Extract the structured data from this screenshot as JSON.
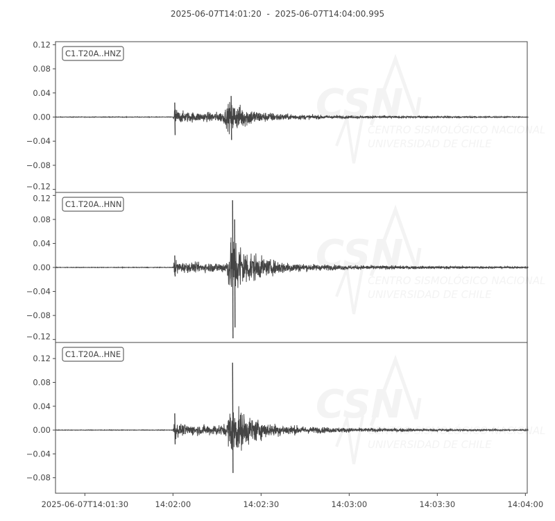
{
  "title": "2025-06-07T14:01:20  -  2025-06-07T14:04:00.995",
  "watermark": {
    "logo": "CSN",
    "line1": "CENTRO SISMOLÓGICO NACIONAL",
    "line2": "UNIVERSIDAD DE CHILE"
  },
  "colors": {
    "trace": "#444444",
    "axes": "#444444",
    "watermark": "#f3f3f3"
  },
  "chart_data": [
    {
      "type": "line",
      "series": [
        {
          "name": "C1.T20A..HNZ"
        }
      ],
      "x_range": [
        "14:01:20",
        "14:04:00.995"
      ],
      "ylim": [
        -0.125,
        0.125
      ],
      "yticks": [
        "0.12",
        "0.08",
        "0.04",
        "0.00",
        "−0.04",
        "−0.08",
        "−0.12"
      ],
      "ytick_values": [
        0.12,
        0.08,
        0.04,
        0,
        -0.04,
        -0.08,
        -0.12
      ],
      "envelope": [
        [
          "14:01:20",
          0.0006
        ],
        [
          "14:02:00",
          0.0006
        ],
        [
          "14:02:00.5",
          0.024
        ],
        [
          "14:02:02",
          0.013
        ],
        [
          "14:02:10",
          0.01
        ],
        [
          "14:02:17",
          0.012
        ],
        [
          "14:02:19.5",
          0.036
        ],
        [
          "14:02:22",
          0.028
        ],
        [
          "14:02:30",
          0.012
        ],
        [
          "14:02:40",
          0.006
        ],
        [
          "14:03:00",
          0.003
        ],
        [
          "14:03:30",
          0.0018
        ],
        [
          "14:03:55",
          0.0012
        ],
        [
          "14:04:00.995",
          0.0006
        ]
      ],
      "peaks": [
        [
          "14:02:00.6",
          0.024,
          -0.03
        ],
        [
          "14:02:19.8",
          0.035,
          -0.038
        ]
      ]
    },
    {
      "type": "line",
      "series": [
        {
          "name": "C1.T20A..HNN"
        }
      ],
      "x_range": [
        "14:01:20",
        "14:04:00.995"
      ],
      "ylim": [
        -0.125,
        0.125
      ],
      "yticks": [
        "0.12",
        "0.08",
        "0.04",
        "0.00",
        "−0.04",
        "−0.08",
        "−0.12"
      ],
      "ytick_values": [
        0.12,
        0.08,
        0.04,
        0,
        -0.04,
        -0.08,
        -0.12
      ],
      "envelope": [
        [
          "14:01:20",
          0.0006
        ],
        [
          "14:02:00",
          0.0006
        ],
        [
          "14:02:00.5",
          0.02
        ],
        [
          "14:02:02",
          0.012
        ],
        [
          "14:02:10",
          0.01
        ],
        [
          "14:02:18",
          0.012
        ],
        [
          "14:02:19.5",
          0.06
        ],
        [
          "14:02:21",
          0.07
        ],
        [
          "14:02:25",
          0.04
        ],
        [
          "14:02:32",
          0.018
        ],
        [
          "14:02:45",
          0.008
        ],
        [
          "14:03:00",
          0.005
        ],
        [
          "14:03:30",
          0.003
        ],
        [
          "14:04:00.995",
          0.0015
        ]
      ],
      "peaks": [
        [
          "14:02:20.3",
          0.112,
          -0.118
        ],
        [
          "14:02:21",
          0.08,
          -0.1
        ],
        [
          "14:02:00.6",
          0.02,
          -0.015
        ]
      ]
    },
    {
      "type": "line",
      "series": [
        {
          "name": "C1.T20A..HNE"
        }
      ],
      "x_range": [
        "14:01:20",
        "14:04:00.995"
      ],
      "ylim": [
        -0.106,
        0.147
      ],
      "yticks": [
        "0.12",
        "0.08",
        "0.04",
        "0.00",
        "−0.04",
        "−0.08"
      ],
      "ytick_values": [
        0.12,
        0.08,
        0.04,
        0,
        -0.04,
        -0.08
      ],
      "envelope": [
        [
          "14:01:20",
          0.0006
        ],
        [
          "14:02:00",
          0.0006
        ],
        [
          "14:02:00.5",
          0.025
        ],
        [
          "14:02:02",
          0.013
        ],
        [
          "14:02:10",
          0.011
        ],
        [
          "14:02:18",
          0.013
        ],
        [
          "14:02:19.5",
          0.05
        ],
        [
          "14:02:21",
          0.055
        ],
        [
          "14:02:25",
          0.035
        ],
        [
          "14:02:32",
          0.016
        ],
        [
          "14:02:45",
          0.008
        ],
        [
          "14:03:00",
          0.005
        ],
        [
          "14:03:30",
          0.003
        ],
        [
          "14:04:00.995",
          0.0015
        ]
      ],
      "peaks": [
        [
          "14:02:20.3",
          0.113,
          -0.072
        ],
        [
          "14:02:00.6",
          0.028,
          -0.024
        ]
      ]
    }
  ],
  "xticks": [
    {
      "label": "2025-06-07T14:01:30",
      "time": "14:01:30"
    },
    {
      "label": "14:02:00",
      "time": "14:02:00"
    },
    {
      "label": "14:02:30",
      "time": "14:02:30"
    },
    {
      "label": "14:03:00",
      "time": "14:03:00"
    },
    {
      "label": "14:03:30",
      "time": "14:03:30"
    },
    {
      "label": "14:04:00",
      "time": "14:04:00"
    }
  ]
}
